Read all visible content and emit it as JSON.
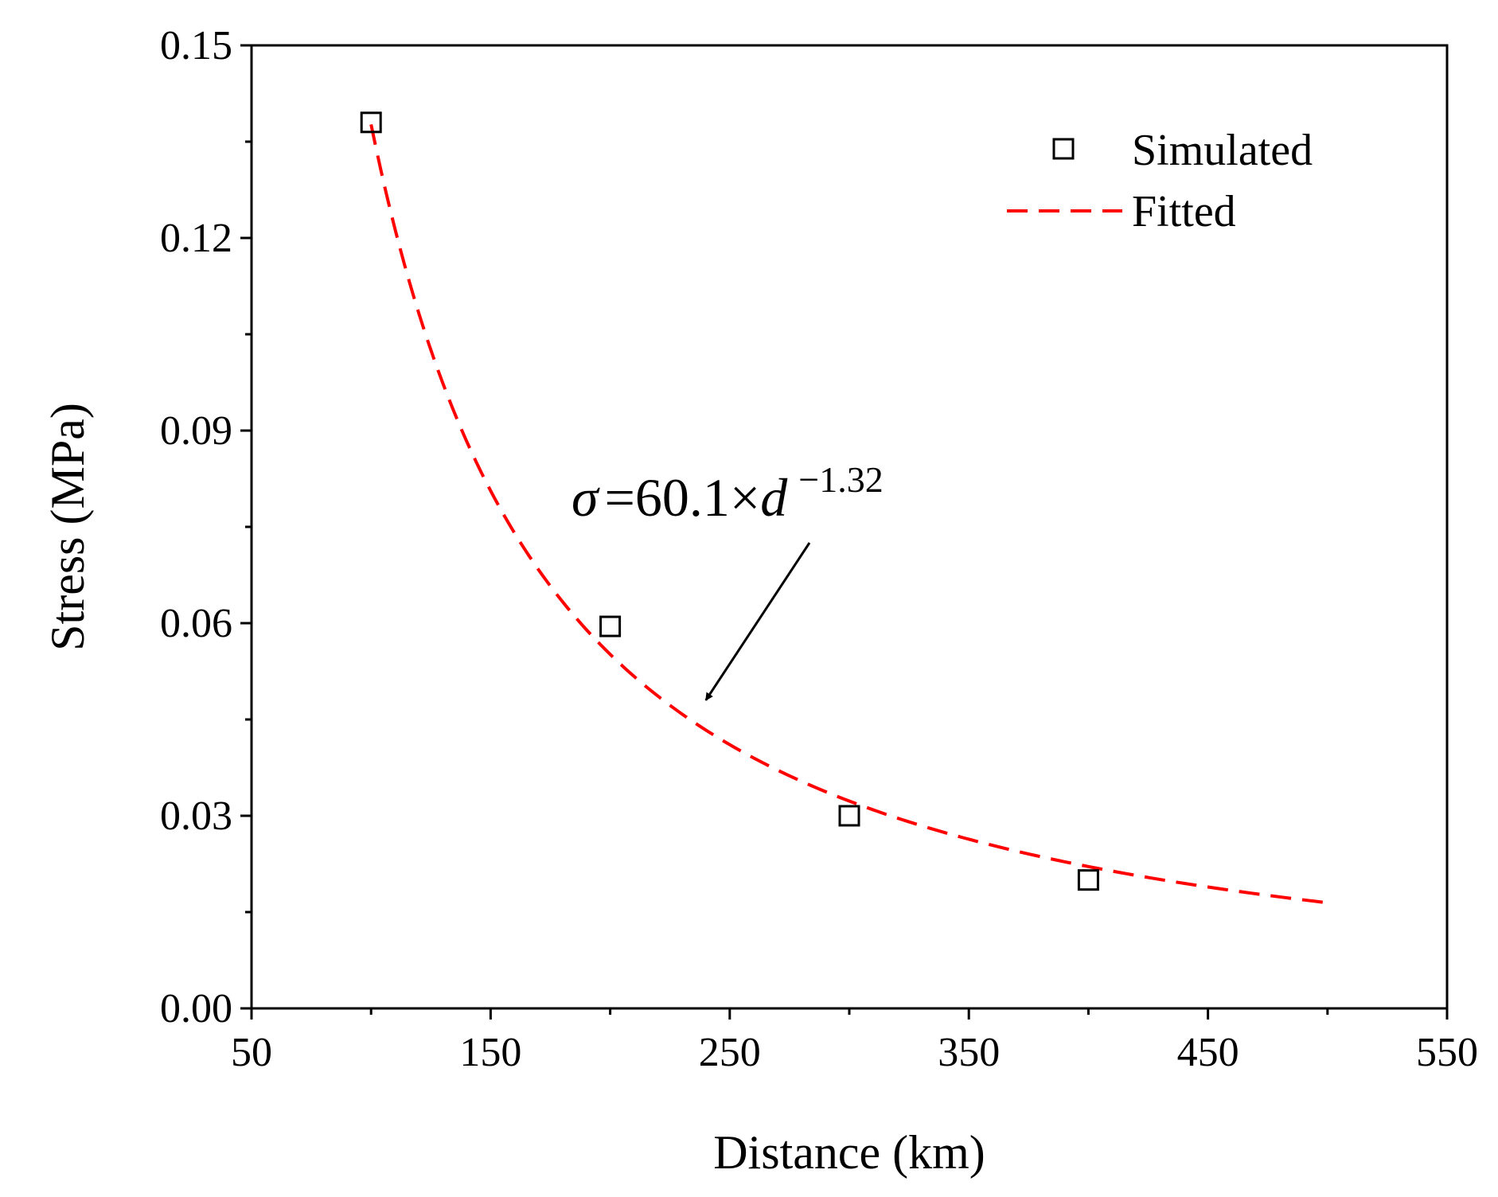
{
  "chart_data": {
    "type": "scatter",
    "title": "",
    "xlabel": "Distance (km)",
    "ylabel": "Stress (MPa)",
    "xlim": [
      50,
      550
    ],
    "ylim": [
      0,
      0.15
    ],
    "xticks": [
      50,
      150,
      250,
      350,
      450,
      550
    ],
    "xtick_labels": [
      "50",
      "150",
      "250",
      "350",
      "450",
      "550"
    ],
    "yticks": [
      0,
      0.03,
      0.06,
      0.09,
      0.12,
      0.15
    ],
    "ytick_labels": [
      "0.00",
      "0.03",
      "0.06",
      "0.09",
      "0.12",
      "0.15"
    ],
    "x_minor_step": 50,
    "y_minor_step": 0.015,
    "grid": false,
    "legend_position": "top-right",
    "series": [
      {
        "name": "Simulated",
        "kind": "scatter",
        "marker": "open-square",
        "color": "#000000",
        "x": [
          100,
          200,
          300,
          400
        ],
        "y": [
          0.138,
          0.0595,
          0.03,
          0.02
        ]
      },
      {
        "name": "Fitted",
        "kind": "line",
        "style": "dashed",
        "color": "#ff0000",
        "equation": {
          "coefficient": 60.1,
          "exponent": -1.32
        },
        "x_range": [
          100,
          500
        ]
      }
    ],
    "annotation": {
      "sigma": "σ",
      "equals": "=",
      "body": "60.1×",
      "variable": "d",
      "exponent": "−1.32",
      "arrow_to": [
        240,
        0.048
      ]
    }
  }
}
